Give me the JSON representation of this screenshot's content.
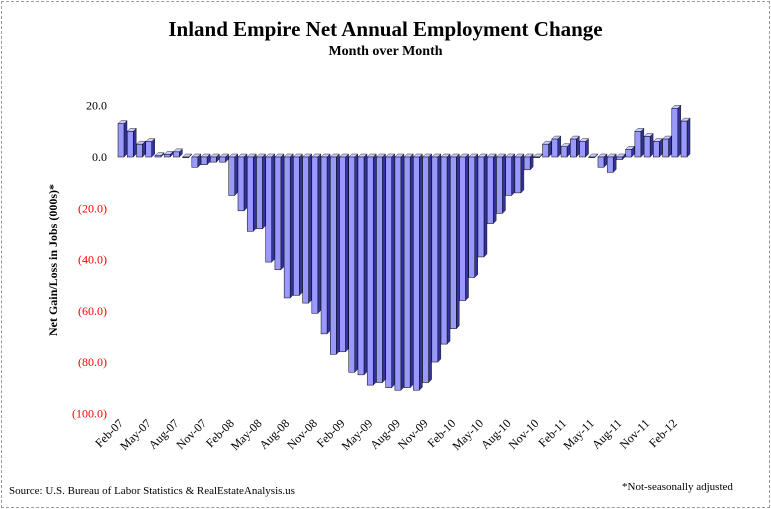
{
  "chart_data": {
    "type": "bar",
    "title": "Inland Empire Net Annual Employment Change",
    "subtitle": "Month over Month",
    "xlabel": "",
    "ylabel": "Net Gain/Loss in Jobs (000s)*",
    "ylim": [
      -100,
      20
    ],
    "y_ticks": [
      20,
      0,
      -20,
      -40,
      -60,
      -80,
      -100
    ],
    "y_tick_labels": [
      "20.0",
      "0.0",
      "(20.0)",
      "(40.0)",
      "(60.0)",
      "(80.0)",
      "(100.0)"
    ],
    "x_tick_labels": [
      "Feb-07",
      "May-07",
      "Aug-07",
      "Nov-07",
      "Feb-08",
      "May-08",
      "Aug-08",
      "Nov-08",
      "Feb-09",
      "May-09",
      "Aug-09",
      "Nov-09",
      "Feb-10",
      "May-10",
      "Aug-10",
      "Nov-10",
      "Feb-11",
      "May-11",
      "Aug-11",
      "Nov-11",
      "Feb-12"
    ],
    "grid": false,
    "legend": "none",
    "bar_style": "3d",
    "colors": {
      "bar_face": "#9999ff",
      "bar_side": "#333399",
      "bar_top": "#ccccff",
      "negative_label": "#ff0000"
    },
    "categories": [
      "Feb-07",
      "Mar-07",
      "Apr-07",
      "May-07",
      "Jun-07",
      "Jul-07",
      "Aug-07",
      "Sep-07",
      "Oct-07",
      "Nov-07",
      "Dec-07",
      "Jan-08",
      "Feb-08",
      "Mar-08",
      "Apr-08",
      "May-08",
      "Jun-08",
      "Jul-08",
      "Aug-08",
      "Sep-08",
      "Oct-08",
      "Nov-08",
      "Dec-08",
      "Jan-09",
      "Feb-09",
      "Mar-09",
      "Apr-09",
      "May-09",
      "Jun-09",
      "Jul-09",
      "Aug-09",
      "Sep-09",
      "Oct-09",
      "Nov-09",
      "Dec-09",
      "Jan-10",
      "Feb-10",
      "Mar-10",
      "Apr-10",
      "May-10",
      "Jun-10",
      "Jul-10",
      "Aug-10",
      "Sep-10",
      "Oct-10",
      "Nov-10",
      "Dec-10",
      "Jan-11",
      "Feb-11",
      "Mar-11",
      "Apr-11",
      "May-11",
      "Jun-11",
      "Jul-11",
      "Aug-11",
      "Sep-11",
      "Oct-11",
      "Nov-11",
      "Dec-11",
      "Jan-12",
      "Feb-12",
      "Mar-12"
    ],
    "values": [
      13,
      10,
      5,
      6,
      0.5,
      1,
      2,
      0,
      -4,
      -3,
      -2,
      -2,
      -15,
      -21,
      -29,
      -28,
      -41,
      -44,
      -55,
      -54,
      -57,
      -61,
      -69,
      -77,
      -76,
      -84,
      -85,
      -89,
      -88,
      -90,
      -91,
      -90,
      -91,
      -88,
      -80,
      -73,
      -67,
      -56,
      -47,
      -39,
      -26,
      -22,
      -15,
      -14,
      -5,
      0,
      5,
      7,
      4,
      7,
      6,
      0,
      -4,
      -6,
      -1,
      3,
      10,
      8,
      6,
      7,
      19,
      14
    ]
  },
  "source_note": "Source: U.S. Bureau of Labor Statistics & RealEstateAnalysis.us",
  "footnote": "*Not-seasonally adjusted"
}
